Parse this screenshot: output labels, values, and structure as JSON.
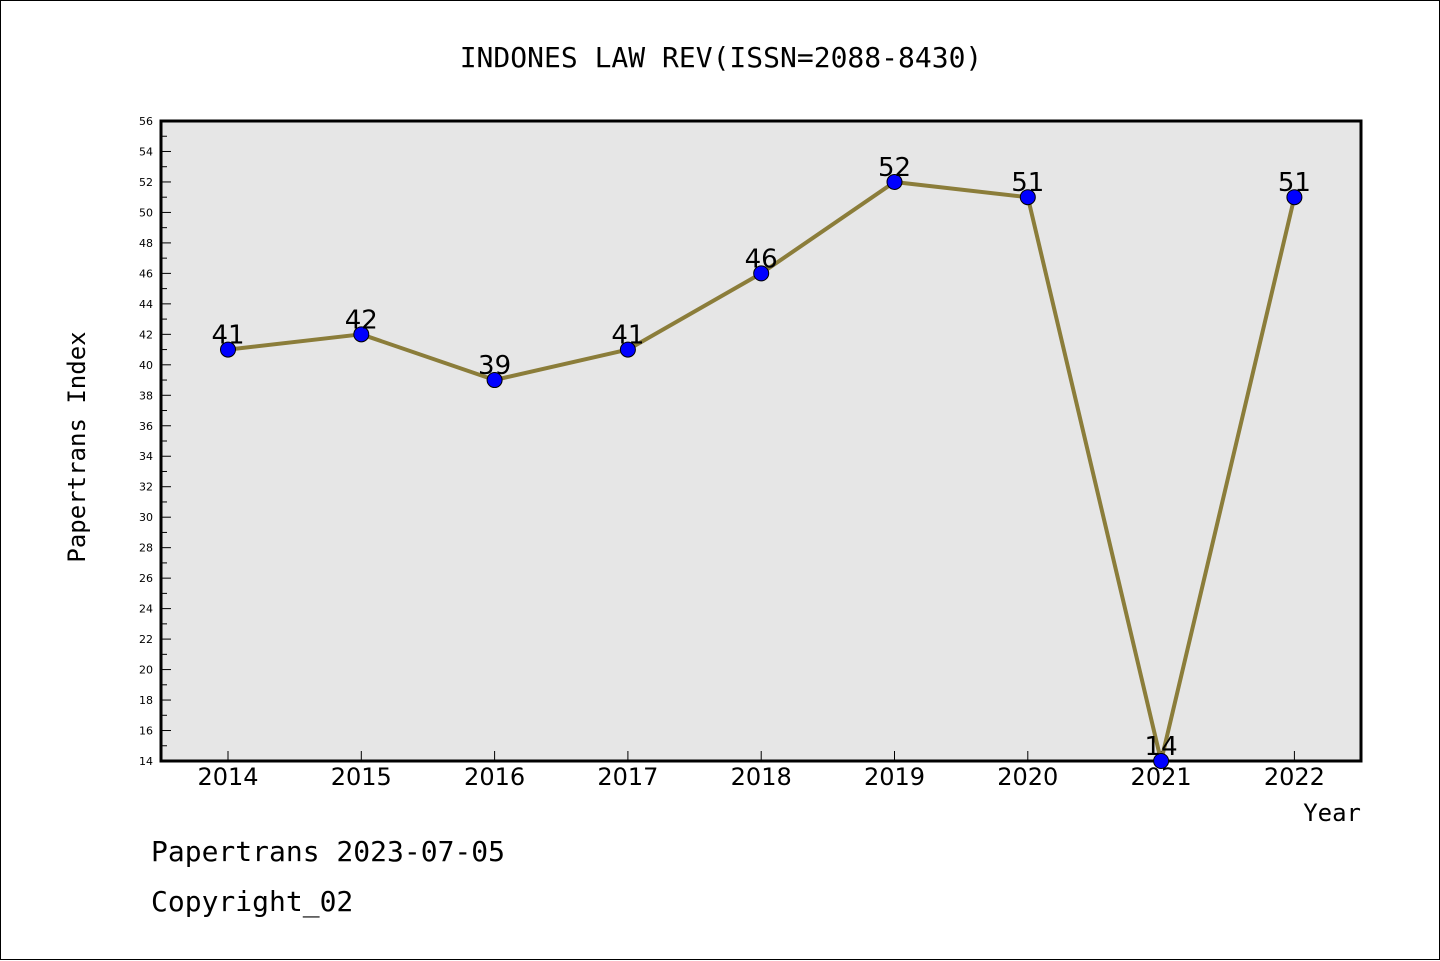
{
  "chart_data": {
    "type": "line",
    "title": "INDONES LAW REV(ISSN=2088-8430)",
    "xlabel": "Year",
    "ylabel": "Papertrans Index",
    "categories": [
      "2014",
      "2015",
      "2016",
      "2017",
      "2018",
      "2019",
      "2020",
      "2021",
      "2022"
    ],
    "series": [
      {
        "values": [
          41,
          42,
          39,
          41,
          46,
          52,
          51,
          14,
          51
        ]
      }
    ],
    "ylim": [
      14,
      56
    ],
    "y_major_step": 2,
    "y_minor_step": 1,
    "y_ticks": [
      "14",
      "16",
      "18",
      "20",
      "22",
      "24",
      "26",
      "28",
      "30",
      "32",
      "34",
      "36",
      "38",
      "40",
      "42",
      "44",
      "46",
      "48",
      "50",
      "52",
      "54",
      "56"
    ],
    "data_labels": [
      "41",
      "42",
      "39",
      "41",
      "46",
      "52",
      "51",
      "14",
      "51"
    ],
    "grid": false,
    "legend": "none",
    "colors": {
      "plot_background": "#e6e6e6",
      "line": "#8b7d3a",
      "marker": "#0000ff",
      "axis": "#000000"
    }
  },
  "footer": {
    "line1": "Papertrans 2023-07-05",
    "line2": "Copyright_02"
  }
}
